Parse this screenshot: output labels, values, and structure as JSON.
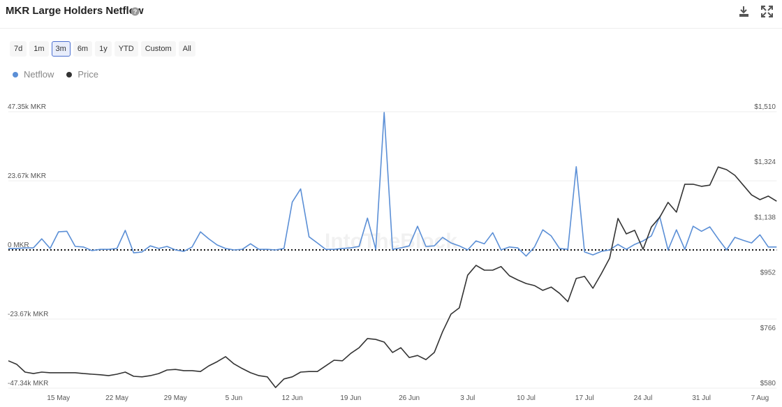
{
  "header": {
    "title": "MKR Large Holders Netflow"
  },
  "range_buttons": [
    "7d",
    "1m",
    "3m",
    "6m",
    "1y",
    "YTD",
    "Custom",
    "All"
  ],
  "active_range": 2,
  "watermark": "IntoTheBlock",
  "chart_data": {
    "type": "line",
    "grid": true,
    "categories": [
      null,
      null,
      null,
      null,
      null,
      null,
      "15 May",
      null,
      null,
      null,
      null,
      null,
      null,
      "22 May",
      null,
      null,
      null,
      null,
      null,
      null,
      "29 May",
      null,
      null,
      null,
      null,
      null,
      null,
      "5 Jun",
      null,
      null,
      null,
      null,
      null,
      null,
      "12 Jun",
      null,
      null,
      null,
      null,
      null,
      null,
      "19 Jun",
      null,
      null,
      null,
      null,
      null,
      null,
      "26 Jun",
      null,
      null,
      null,
      null,
      null,
      null,
      "3 Jul",
      null,
      null,
      null,
      null,
      null,
      null,
      "10 Jul",
      null,
      null,
      null,
      null,
      null,
      null,
      "17 Jul",
      null,
      null,
      null,
      null,
      null,
      null,
      "24 Jul",
      null,
      null,
      null,
      null,
      null,
      null,
      "31 Jul",
      null,
      null,
      null,
      null,
      null,
      null,
      "7 Aug",
      null,
      null
    ],
    "ylim": [
      -47340,
      47350
    ],
    "yticks": [
      {
        "value": 47350,
        "label": "47.35k MKR"
      },
      {
        "value": 23670,
        "label": "23.67k MKR"
      },
      {
        "value": 0,
        "label": "0 MKR"
      },
      {
        "value": -23670,
        "label": "-23.67k MKR"
      },
      {
        "value": -47340,
        "label": "-47.34k MKR"
      }
    ],
    "y2lim": [
      580,
      1510
    ],
    "y2ticks": [
      {
        "value": 1510,
        "label": "$1,510"
      },
      {
        "value": 1324,
        "label": "$1,324"
      },
      {
        "value": 1138,
        "label": "$1,138"
      },
      {
        "value": 952,
        "label": "$952"
      },
      {
        "value": 766,
        "label": "$766"
      },
      {
        "value": 580,
        "label": "$580"
      }
    ],
    "series": [
      {
        "name": "Netflow",
        "color": "#5b8fd6",
        "values": [
          500,
          500,
          700,
          700,
          3800,
          500,
          6200,
          6400,
          1200,
          1000,
          -200,
          200,
          200,
          500,
          6700,
          -1000,
          -700,
          1400,
          500,
          1200,
          0,
          -500,
          1000,
          6200,
          3800,
          1700,
          500,
          0,
          200,
          2100,
          200,
          200,
          0,
          500,
          16400,
          20900,
          4500,
          2400,
          200,
          200,
          500,
          700,
          1200,
          10900,
          200,
          47100,
          200,
          700,
          1400,
          8100,
          1200,
          1400,
          4300,
          2400,
          1400,
          0,
          3100,
          2100,
          5900,
          0,
          1000,
          700,
          -2100,
          1000,
          6900,
          4800,
          500,
          200,
          28500,
          -700,
          -1700,
          -500,
          0,
          1900,
          200,
          1900,
          3100,
          4800,
          11400,
          0,
          6900,
          200,
          8100,
          6400,
          7900,
          3800,
          0,
          4300,
          3300,
          2400,
          5200,
          1000,
          1000
        ]
      },
      {
        "name": "Price",
        "color": "#333333",
        "axis": "y2",
        "values": [
          672,
          660,
          634,
          629,
          634,
          632,
          632,
          632,
          632,
          629,
          627,
          625,
          622,
          627,
          634,
          620,
          618,
          622,
          629,
          641,
          643,
          639,
          639,
          636,
          655,
          669,
          686,
          662,
          646,
          632,
          622,
          618,
          582,
          611,
          618,
          634,
          636,
          636,
          655,
          674,
          672,
          697,
          716,
          747,
          744,
          735,
          700,
          716,
          683,
          690,
          676,
          700,
          770,
          829,
          850,
          960,
          993,
          977,
          977,
          989,
          958,
          944,
          932,
          925,
          909,
          920,
          899,
          871,
          949,
          956,
          916,
          965,
          1017,
          1151,
          1099,
          1111,
          1047,
          1122,
          1155,
          1205,
          1172,
          1266,
          1266,
          1259,
          1263,
          1324,
          1315,
          1296,
          1263,
          1230,
          1214,
          1226,
          1209
        ]
      }
    ]
  }
}
